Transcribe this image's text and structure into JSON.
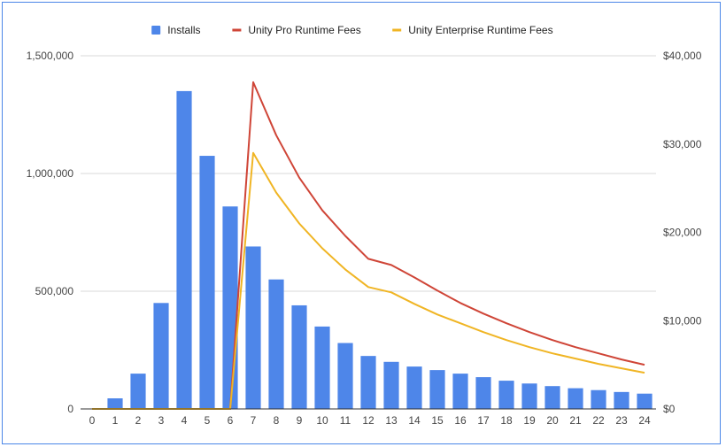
{
  "chart_data": {
    "type": "bar",
    "title": "",
    "xlabel": "",
    "ylabel": "",
    "y2label": "",
    "categories": [
      "0",
      "1",
      "2",
      "3",
      "4",
      "5",
      "6",
      "7",
      "8",
      "9",
      "10",
      "11",
      "12",
      "13",
      "14",
      "15",
      "16",
      "17",
      "18",
      "19",
      "20",
      "21",
      "22",
      "23",
      "24"
    ],
    "ylim": [
      0,
      1500000
    ],
    "y2lim": [
      0,
      40000
    ],
    "y_ticks": [
      0,
      500000,
      1000000,
      1500000
    ],
    "y_tick_labels": [
      "0",
      "500,000",
      "1,000,000",
      "1,500,000"
    ],
    "y2_ticks": [
      0,
      10000,
      20000,
      30000,
      40000
    ],
    "y2_tick_labels": [
      "$0",
      "$10,000",
      "$20,000",
      "$30,000",
      "$40,000"
    ],
    "grid": true,
    "legend": "top",
    "series": [
      {
        "name": "Installs",
        "type": "bar",
        "axis": "left",
        "color": "#4e86e9",
        "values": [
          0,
          45000,
          150000,
          450000,
          1350000,
          1075000,
          860000,
          690000,
          550000,
          440000,
          350000,
          280000,
          225000,
          200000,
          180000,
          165000,
          150000,
          135000,
          120000,
          108000,
          97000,
          88000,
          80000,
          72000,
          65000
        ]
      },
      {
        "name": "Unity Pro Runtime Fees",
        "type": "line",
        "axis": "right",
        "color": "#cf4537",
        "values": [
          0,
          0,
          0,
          0,
          0,
          0,
          0,
          37000,
          31000,
          26200,
          22500,
          19600,
          17000,
          16300,
          14900,
          13400,
          12000,
          10800,
          9700,
          8700,
          7800,
          7000,
          6300,
          5600,
          5000
        ]
      },
      {
        "name": "Unity Enterprise Runtime Fees",
        "type": "line",
        "axis": "right",
        "color": "#f0b524",
        "values": [
          0,
          0,
          0,
          0,
          0,
          0,
          0,
          29000,
          24500,
          21000,
          18200,
          15800,
          13800,
          13200,
          11900,
          10700,
          9700,
          8700,
          7800,
          7000,
          6300,
          5700,
          5100,
          4600,
          4100
        ]
      }
    ]
  }
}
